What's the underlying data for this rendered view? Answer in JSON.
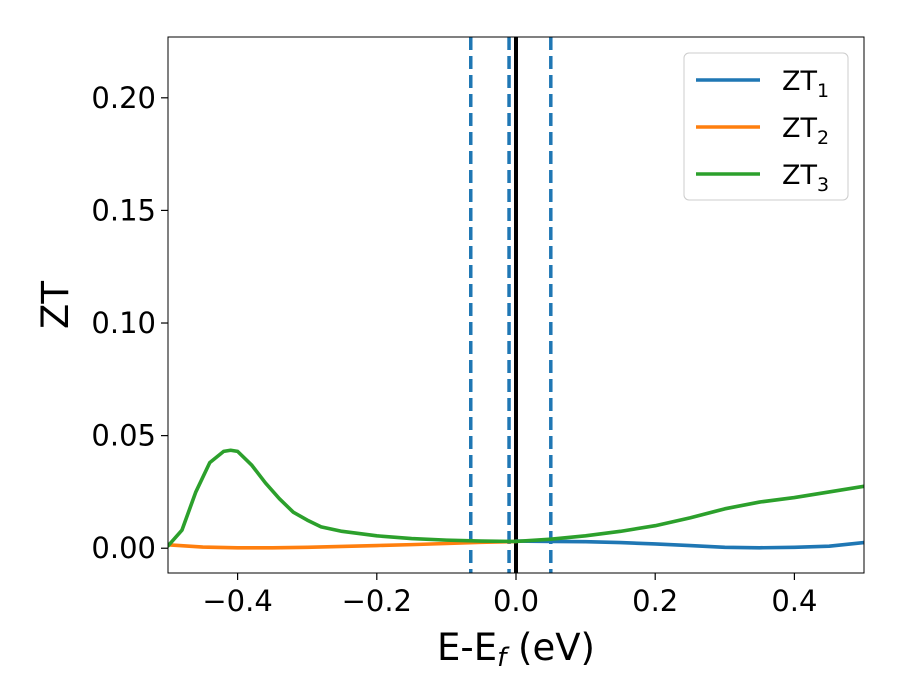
{
  "chart_data": {
    "type": "line",
    "title": "",
    "xlabel": {
      "main": "E-E",
      "sub": "f",
      "suffix": " (eV)"
    },
    "ylabel": "ZT",
    "xlim": [
      -0.5,
      0.5
    ],
    "ylim": [
      -0.011,
      0.227
    ],
    "xticks": [
      {
        "value": -0.4,
        "label": "−0.4"
      },
      {
        "value": -0.2,
        "label": "−0.2"
      },
      {
        "value": 0.0,
        "label": "0.0"
      },
      {
        "value": 0.2,
        "label": "0.2"
      },
      {
        "value": 0.4,
        "label": "0.4"
      }
    ],
    "yticks": [
      {
        "value": 0.0,
        "label": "0.00"
      },
      {
        "value": 0.05,
        "label": "0.05"
      },
      {
        "value": 0.1,
        "label": "0.10"
      },
      {
        "value": 0.15,
        "label": "0.15"
      },
      {
        "value": 0.2,
        "label": "0.20"
      }
    ],
    "grid": false,
    "legend_position": "top-right",
    "vlines": [
      {
        "x": -0.065,
        "style": "dashed",
        "color": "#1f77b4"
      },
      {
        "x": -0.01,
        "style": "dashed",
        "color": "#1f77b4"
      },
      {
        "x": 0.05,
        "style": "dashed",
        "color": "#1f77b4"
      },
      {
        "x": 0.0,
        "style": "solid",
        "color": "#000000"
      }
    ],
    "series": [
      {
        "name": "ZT",
        "sub": "1",
        "color": "#1f77b4",
        "x": [
          0.0,
          0.05,
          0.1,
          0.15,
          0.2,
          0.25,
          0.3,
          0.35,
          0.4,
          0.45,
          0.5
        ],
        "y": [
          0.0032,
          0.003,
          0.0029,
          0.0025,
          0.0019,
          0.0012,
          0.0004,
          0.0002,
          0.0004,
          0.0009,
          0.0025
        ]
      },
      {
        "name": "ZT",
        "sub": "2",
        "color": "#ff7f0e",
        "x": [
          -0.5,
          -0.45,
          -0.4,
          -0.35,
          -0.3,
          -0.25,
          -0.2,
          -0.15,
          -0.1,
          -0.05,
          0.0
        ],
        "y": [
          0.0015,
          0.0005,
          0.0002,
          0.0002,
          0.0004,
          0.0008,
          0.0012,
          0.0016,
          0.0021,
          0.0026,
          0.003
        ]
      },
      {
        "name": "ZT",
        "sub": "3",
        "color": "#2ca02c",
        "x": [
          -0.5,
          -0.48,
          -0.46,
          -0.44,
          -0.42,
          -0.41,
          -0.4,
          -0.38,
          -0.36,
          -0.34,
          -0.32,
          -0.3,
          -0.28,
          -0.25,
          -0.2,
          -0.15,
          -0.1,
          -0.05,
          0.0,
          0.05,
          0.1,
          0.15,
          0.2,
          0.25,
          0.3,
          0.35,
          0.4,
          0.45,
          0.5
        ],
        "y": [
          0.001,
          0.008,
          0.025,
          0.038,
          0.043,
          0.0435,
          0.043,
          0.037,
          0.029,
          0.022,
          0.016,
          0.0125,
          0.0095,
          0.0075,
          0.0055,
          0.0043,
          0.0036,
          0.0032,
          0.003,
          0.004,
          0.0055,
          0.0075,
          0.01,
          0.0135,
          0.0175,
          0.0205,
          0.0225,
          0.025,
          0.0275
        ]
      }
    ]
  }
}
